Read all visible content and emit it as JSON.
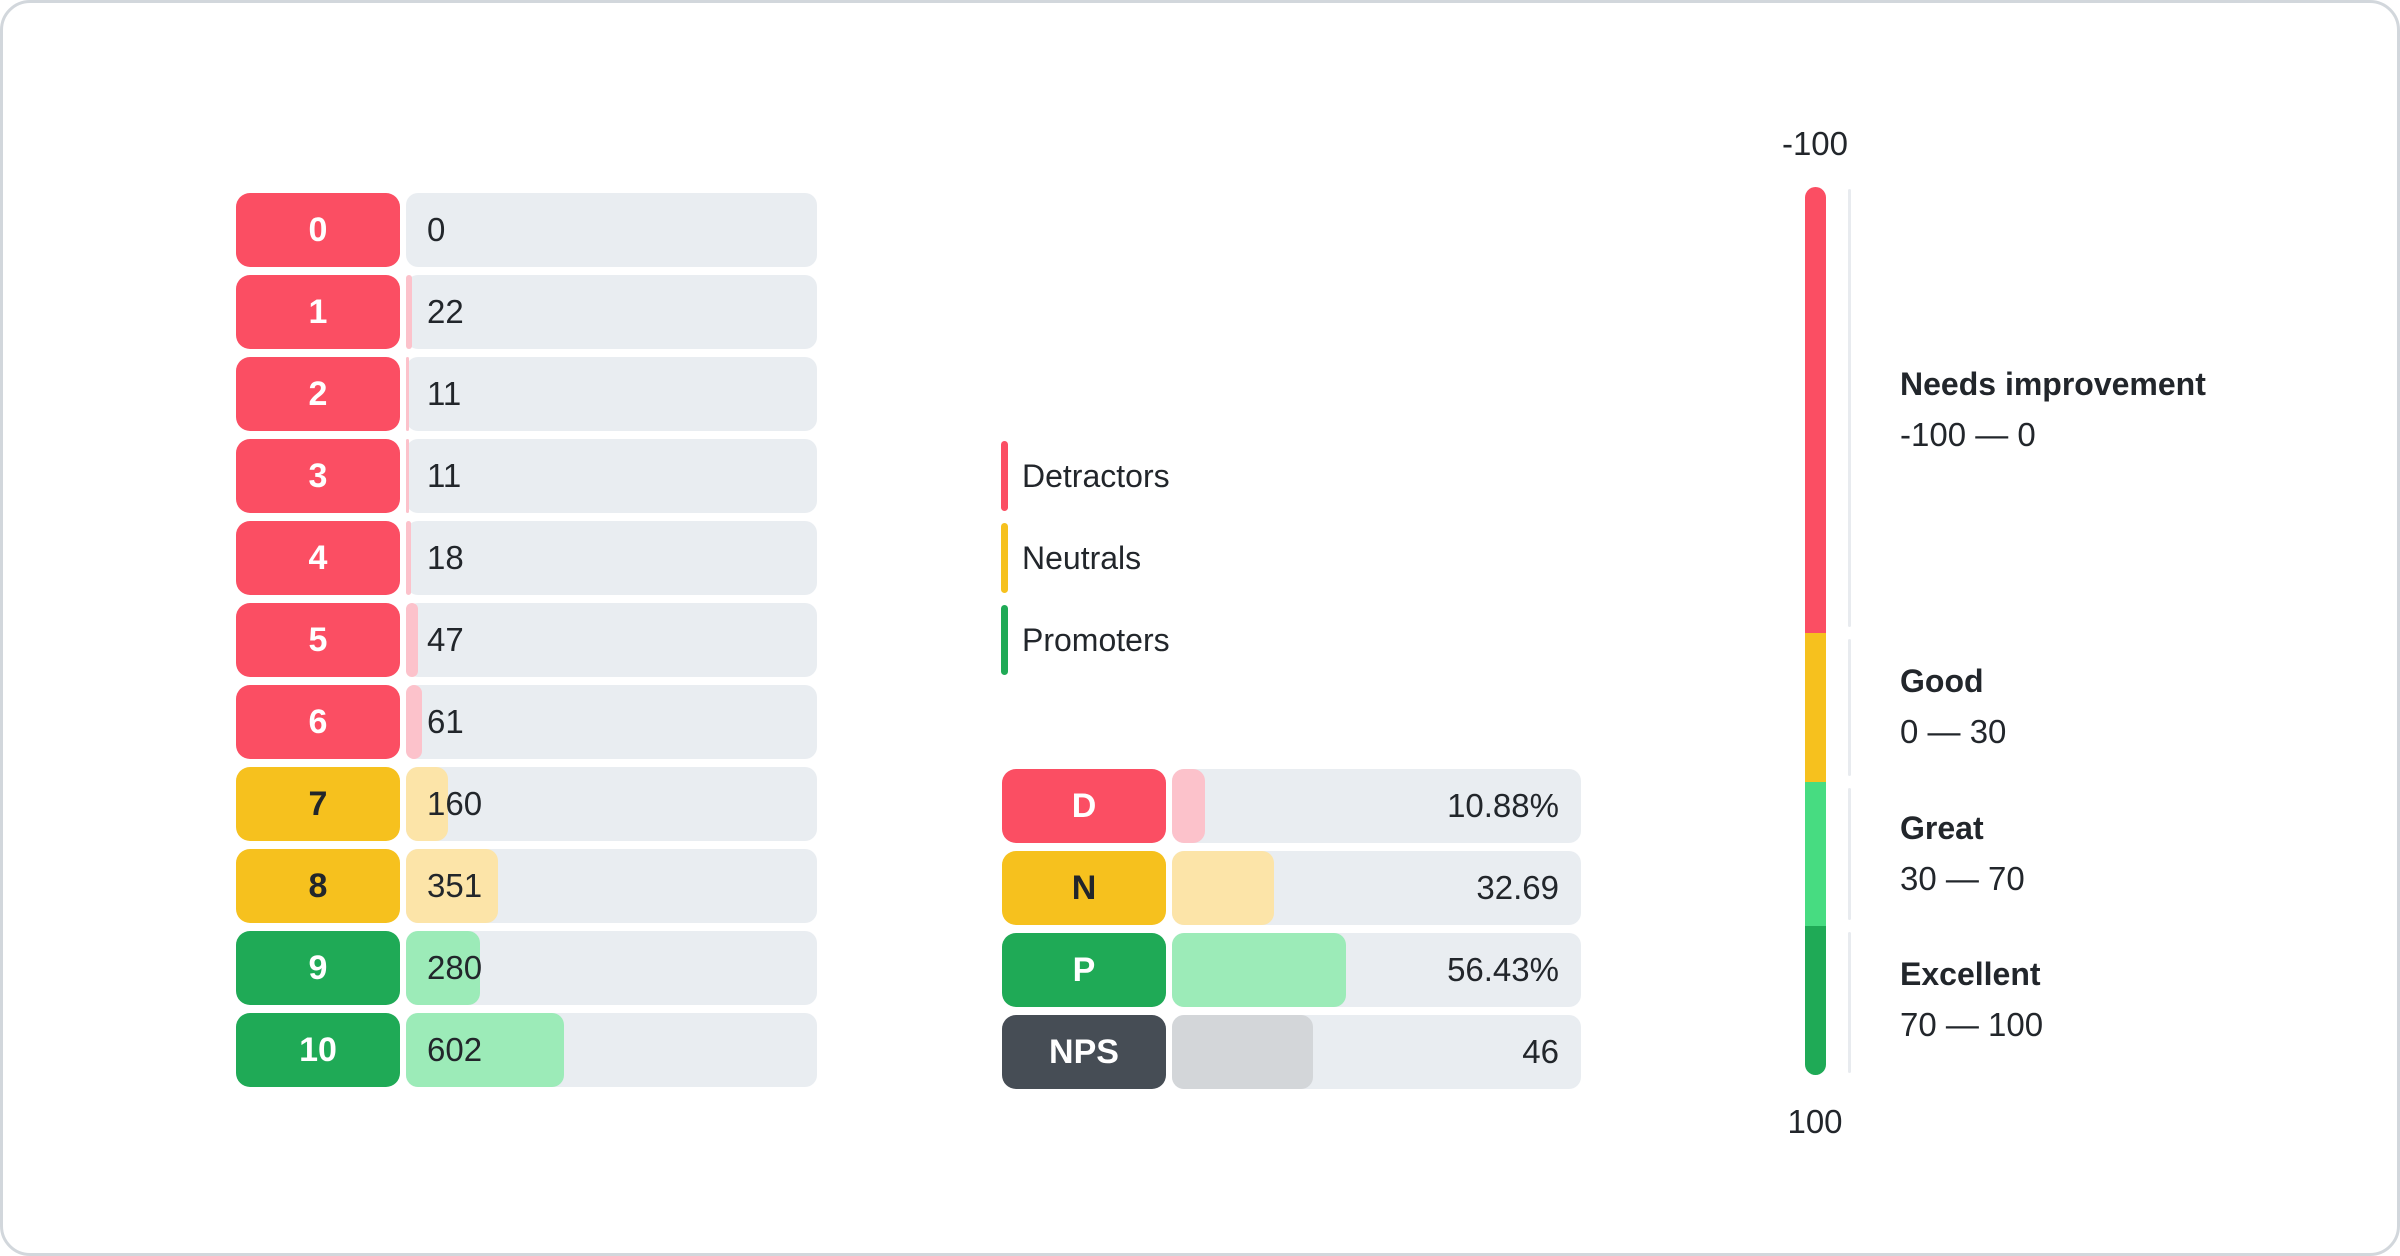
{
  "colors": {
    "detractor": "#FB4E63",
    "detractor_light": "#FCC2CB",
    "neutral": "#F6C11E",
    "neutral_light": "#FCE4A8",
    "promoter": "#1FAA56",
    "promoter_light": "#9CEBB8",
    "great_green": "#47DC81",
    "nps_dark": "#464D55",
    "nps_light": "#D3D6D9",
    "track_gray": "#E9EDF1",
    "text_dark": "#22262B"
  },
  "chart_data": {
    "type": "bar",
    "distribution": {
      "categories": [
        "0",
        "1",
        "2",
        "3",
        "4",
        "5",
        "6",
        "7",
        "8",
        "9",
        "10"
      ],
      "values": [
        0,
        22,
        11,
        11,
        18,
        47,
        61,
        160,
        351,
        280,
        602
      ],
      "groups": [
        "detractor",
        "detractor",
        "detractor",
        "detractor",
        "detractor",
        "detractor",
        "detractor",
        "neutral",
        "neutral",
        "promoter",
        "promoter"
      ],
      "fill_pct": [
        0,
        1.4,
        0.7,
        0.7,
        1.2,
        3.0,
        3.9,
        10.2,
        22.5,
        17.9,
        38.5
      ]
    },
    "legend": {
      "detractors": "Detractors",
      "neutrals": "Neutrals",
      "promoters": "Promoters"
    },
    "summary": [
      {
        "label": "D",
        "display": "10.88%",
        "value": 10.88,
        "group": "detractor",
        "fill_pct": 8.0
      },
      {
        "label": "N",
        "display": "32.69",
        "value": 32.69,
        "group": "neutral",
        "fill_pct": 24.9
      },
      {
        "label": "P",
        "display": "56.43%",
        "value": 56.43,
        "group": "promoter",
        "fill_pct": 42.5
      },
      {
        "label": "NPS",
        "display": "46",
        "value": 46,
        "group": "nps",
        "fill_pct": 34.5
      }
    ],
    "gauge": {
      "axis_top": "-100",
      "axis_bottom": "100",
      "zones": [
        {
          "title": "Needs improvement",
          "range": "-100 — 0",
          "height_pct": 50.2
        },
        {
          "title": "Good",
          "range": "0 — 30",
          "height_pct": 16.8
        },
        {
          "title": "Great",
          "range": "30 — 70",
          "height_pct": 16.2
        },
        {
          "title": "Excellent",
          "range": "70 — 100",
          "height_pct": 16.8
        }
      ]
    }
  }
}
